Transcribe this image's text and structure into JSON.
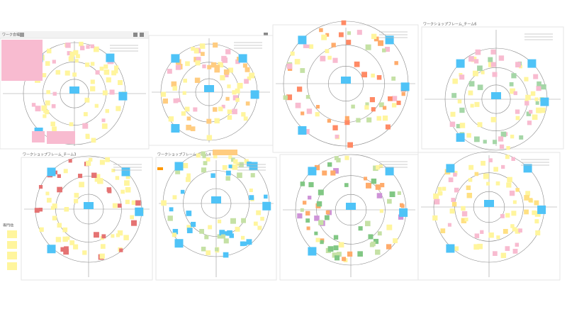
{
  "header": {
    "board_label": "ワーク会場"
  },
  "frame_titles": [
    "ワークショップフレーム_チーム6",
    "ワークショップフレーム_チーム3",
    "ワークショップフレーム_チーム4"
  ],
  "side_label": "専門他"
}
